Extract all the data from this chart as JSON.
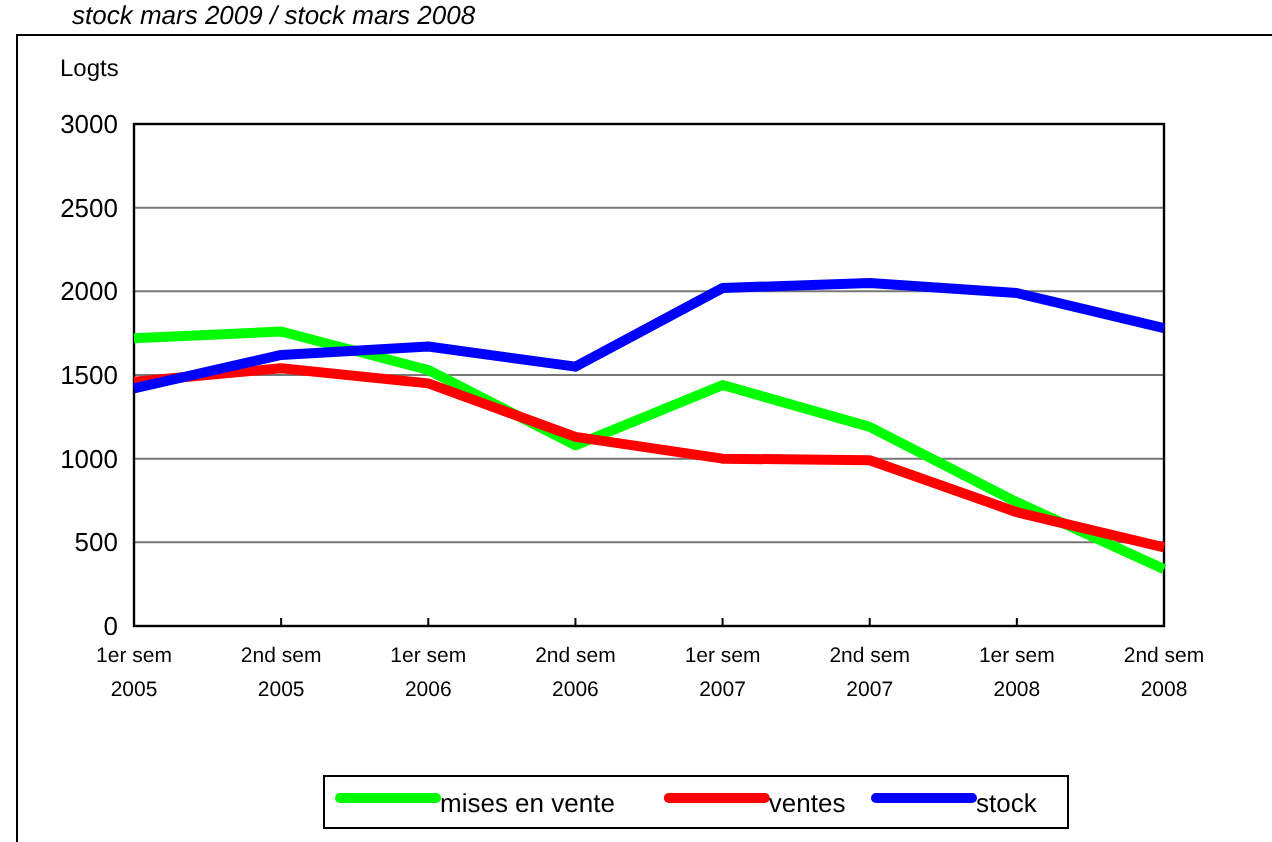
{
  "chart_data": {
    "type": "line",
    "subtitle": "stock mars 2009 / stock mars 2008",
    "ylabel": "Logts",
    "categories": [
      "1er sem\n2005",
      "2nd sem\n2005",
      "1er sem\n2006",
      "2nd sem\n2006",
      "1er sem\n2007",
      "2nd sem\n2007",
      "1er sem\n2008",
      "2nd sem\n2008"
    ],
    "series": [
      {
        "name": "mises en vente",
        "color": "#00ff00",
        "values": [
          1720,
          1760,
          1530,
          1080,
          1440,
          1190,
          740,
          340
        ]
      },
      {
        "name": "ventes",
        "color": "#ff0000",
        "values": [
          1460,
          1540,
          1450,
          1130,
          1000,
          990,
          680,
          470
        ]
      },
      {
        "name": "stock",
        "color": "#0000ff",
        "values": [
          1420,
          1620,
          1670,
          1550,
          2020,
          2050,
          1990,
          1780
        ]
      }
    ],
    "ylim": [
      0,
      3000
    ],
    "yticks": [
      0,
      500,
      1000,
      1500,
      2000,
      2500,
      3000
    ],
    "grid": "y",
    "legend": "bottom",
    "marker": "none",
    "line_style": "solid"
  }
}
